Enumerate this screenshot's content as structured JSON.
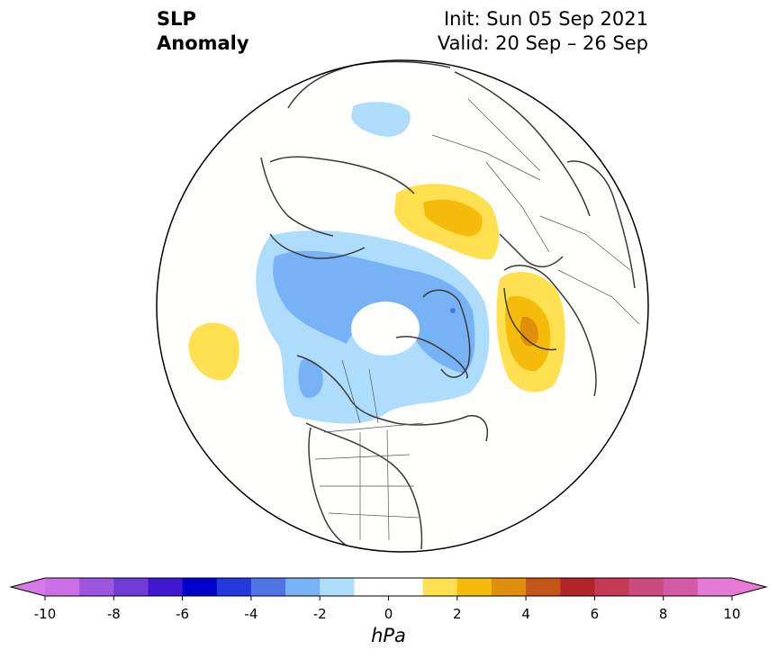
{
  "title": {
    "left_line1": "SLP",
    "left_line2": "Anomaly",
    "init": "Init: Sun 05 Sep 2021",
    "valid": "Valid: 20 Sep – 26 Sep"
  },
  "colorbar": {
    "unit": "hPa",
    "ticks": [
      "-10",
      "-8",
      "-6",
      "-4",
      "-2",
      "0",
      "2",
      "4",
      "6",
      "8",
      "10"
    ],
    "colors": [
      "#cf6fe8",
      "#9e55e0",
      "#6f3cd8",
      "#3e18cf",
      "#0000cc",
      "#2339dc",
      "#4f74e6",
      "#77b2f4",
      "#aedcfb",
      "#ffffff",
      "#ffffff",
      "#ffe050",
      "#f4bb0a",
      "#e08f0d",
      "#c6551a",
      "#b3242a",
      "#c43a55",
      "#cc4a7f",
      "#d45aa8",
      "#e47ad6"
    ],
    "left_extend_color": "#d67ae8",
    "right_extend_color": "#e87ad6"
  },
  "map_colors": {
    "background": "#fefefc",
    "neg_1": "#aedcfb",
    "neg_2": "#77b2f4",
    "neg_3": "#4f74e6",
    "pos_1": "#ffe050",
    "pos_2": "#f4bb0a",
    "pos_3": "#e08f0d",
    "coast": "#3a3a3a",
    "border": "#555555"
  }
}
